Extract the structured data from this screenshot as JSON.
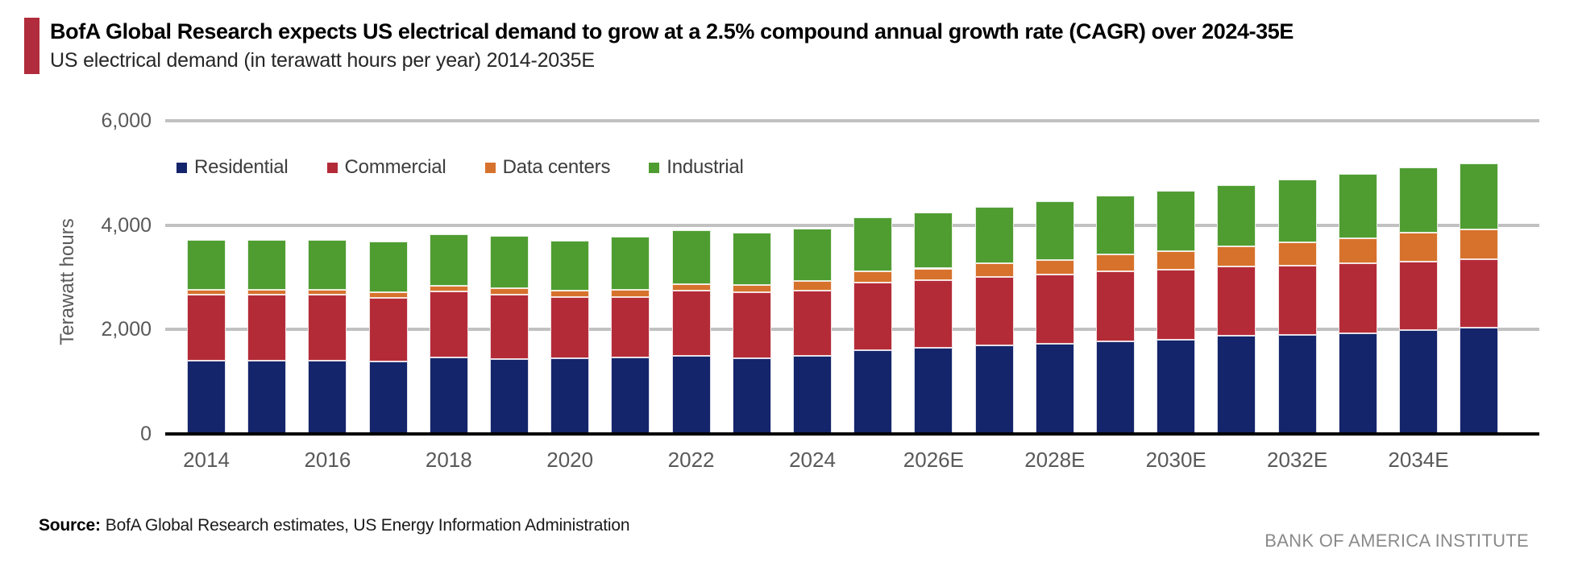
{
  "header": {
    "title": "BofA Global Research expects US electrical demand to grow at a 2.5% compound annual growth rate (CAGR) over 2024-35E",
    "subtitle": "US electrical demand (in terawatt hours per year) 2014-2035E",
    "accent_color": "#b12c3c"
  },
  "chart_data": {
    "type": "bar",
    "stacked": true,
    "title": "US electrical demand (in terawatt hours per year) 2014-2035E",
    "ylabel": "Terawatt hours",
    "xlabel": "",
    "units": "terawatt hours per year",
    "ylim": [
      0,
      6000
    ],
    "yticks": [
      0,
      2000,
      4000,
      6000
    ],
    "ytick_labels": [
      "0",
      "2,000",
      "4,000",
      "6,000"
    ],
    "grid": true,
    "legend_position": "top-left",
    "categories": [
      "2014",
      "2015",
      "2016",
      "2017",
      "2018",
      "2019",
      "2020",
      "2021",
      "2022",
      "2023",
      "2024",
      "2025",
      "2026",
      "2027",
      "2028",
      "2029",
      "2030",
      "2031",
      "2032",
      "2033",
      "2034",
      "2035"
    ],
    "xtick_labels": [
      "2014",
      "2016",
      "2018",
      "2020",
      "2022",
      "2024",
      "2026E",
      "2028E",
      "2030E",
      "2032E",
      "2034E"
    ],
    "xtick_step": 2,
    "series": [
      {
        "name": "Residential",
        "color": "#15256b",
        "values": [
          1410,
          1410,
          1410,
          1395,
          1465,
          1435,
          1445,
          1460,
          1490,
          1450,
          1490,
          1605,
          1655,
          1700,
          1735,
          1775,
          1810,
          1875,
          1900,
          1935,
          1985,
          2035
        ]
      },
      {
        "name": "Commercial",
        "color": "#b42b38",
        "values": [
          1260,
          1255,
          1255,
          1215,
          1270,
          1230,
          1170,
          1165,
          1255,
          1260,
          1255,
          1295,
          1290,
          1315,
          1320,
          1345,
          1335,
          1335,
          1325,
          1330,
          1320,
          1310
        ]
      },
      {
        "name": "Data centers",
        "color": "#d7722c",
        "values": [
          90,
          90,
          95,
          110,
          110,
          125,
          130,
          130,
          130,
          140,
          180,
          215,
          225,
          255,
          280,
          325,
          360,
          385,
          440,
          490,
          550,
          570
        ]
      },
      {
        "name": "Industrial",
        "color": "#4f9d31",
        "values": [
          955,
          960,
          965,
          965,
          985,
          1010,
          960,
          1025,
          1035,
          1005,
          1015,
          1035,
          1070,
          1080,
          1120,
          1125,
          1150,
          1170,
          1205,
          1220,
          1245,
          1275
        ]
      }
    ]
  },
  "footer": {
    "source_label": "Source:",
    "source_text": "BofA Global Research estimates, US Energy Information Administration",
    "branding": "BANK OF AMERICA INSTITUTE"
  }
}
